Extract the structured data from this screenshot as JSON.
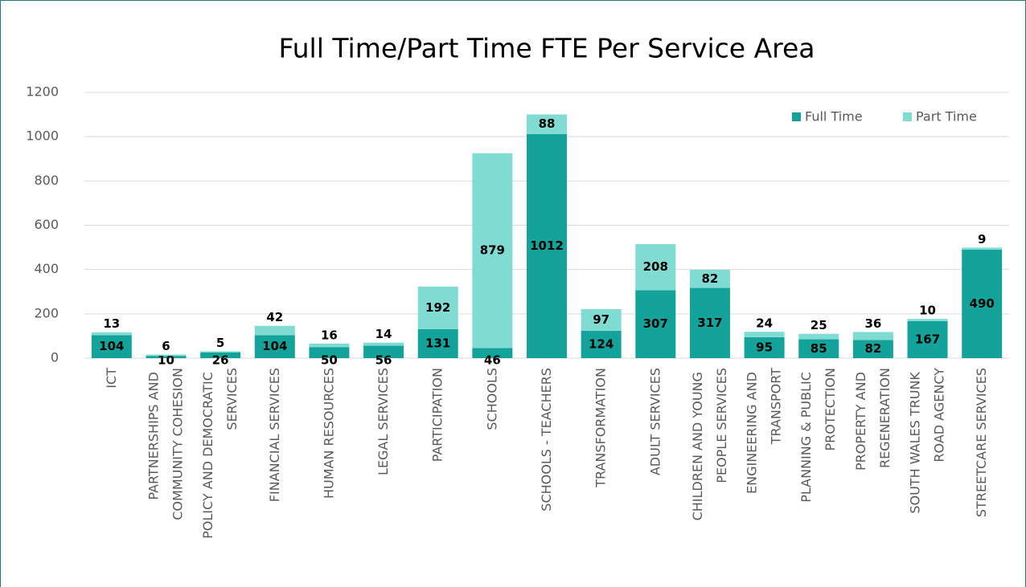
{
  "chart_data": {
    "type": "stacked_bar",
    "title": "Full Time/Part Time FTE Per Service Area",
    "categories": [
      "ICT",
      "PARTNERSHIPS AND COMMUNITY COHESION",
      "POLICY AND DEMOCRATIC SERVICES",
      "FINANCIAL SERVICES",
      "HUMAN RESOURCES",
      "LEGAL SERVICES",
      "PARTICIPATION",
      "SCHOOLS",
      "SCHOOLS - TEACHERS",
      "TRANSFORMATION",
      "ADULT SERVICES",
      "CHILDREN AND YOUNG PEOPLE SERVICES",
      "ENGINEERING AND TRANSPORT",
      "PLANNING & PUBLIC PROTECTION",
      "PROPERTY AND REGENERATION",
      "SOUTH WALES TRUNK ROAD AGENCY",
      "STREETCARE SERVICES"
    ],
    "series": [
      {
        "name": "Full Time",
        "color": "#14a39a",
        "values": [
          104,
          10,
          26,
          104,
          50,
          56,
          131,
          46,
          1012,
          124,
          307,
          317,
          95,
          85,
          82,
          167,
          490
        ]
      },
      {
        "name": "Part Time",
        "color": "#80dcd2",
        "values": [
          13,
          6,
          5,
          42,
          16,
          14,
          192,
          879,
          88,
          97,
          208,
          82,
          24,
          25,
          36,
          10,
          9
        ]
      }
    ],
    "ylim": [
      0,
      1200
    ],
    "yticks": [
      0,
      200,
      400,
      600,
      800,
      1000,
      1200
    ],
    "grid": true,
    "legend": "top-right"
  }
}
